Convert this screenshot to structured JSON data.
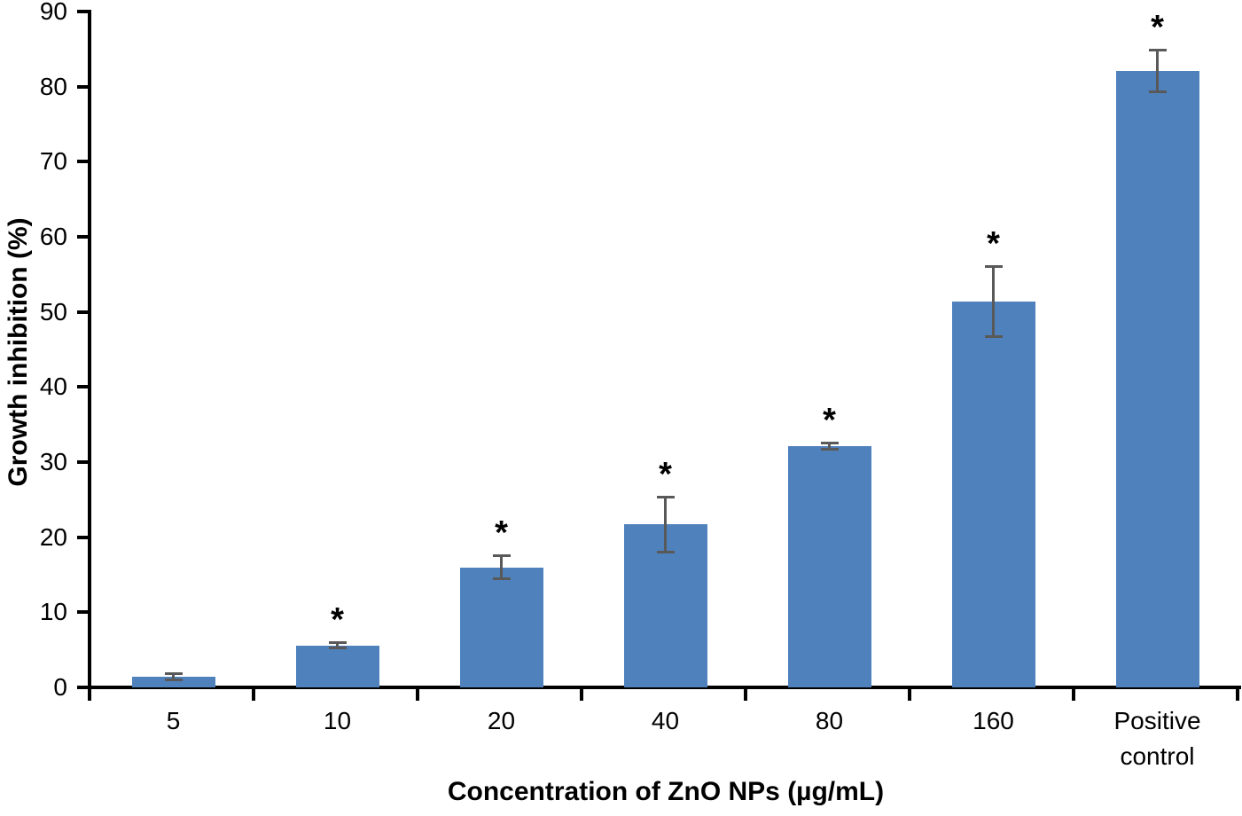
{
  "chart_data": {
    "type": "bar",
    "title": "",
    "xlabel": "Concentration of ZnO NPs (µg/mL)",
    "ylabel": "Growth inhibition (%)",
    "ylim": [
      0,
      90
    ],
    "ytick_step": 10,
    "yticks": [
      0,
      10,
      20,
      30,
      40,
      50,
      60,
      70,
      80,
      90
    ],
    "grid": "off",
    "legend": "none",
    "bar_color": "#4F81BD",
    "error_bar_color": "#595959",
    "axis_color": "#000000",
    "categories": [
      "5",
      "10",
      "20",
      "40",
      "80",
      "160",
      "Positive control"
    ],
    "series": [
      {
        "name": "Growth inhibition",
        "values": [
          1.4,
          5.6,
          16.0,
          21.7,
          32.1,
          51.4,
          82.1
        ],
        "errors": [
          0.5,
          0.4,
          1.6,
          3.7,
          0.5,
          4.7,
          2.8
        ],
        "significance": [
          "",
          "*",
          "*",
          "*",
          "*",
          "*",
          "*"
        ]
      }
    ]
  }
}
